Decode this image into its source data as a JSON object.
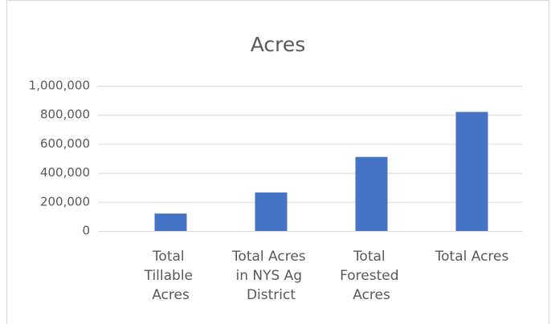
{
  "chart_data": {
    "type": "bar",
    "title": "Acres",
    "categories": [
      "Total Tillable Acres",
      "Total Acres in NYS Ag District",
      "Total Forested Acres",
      "Total Acres"
    ],
    "values": [
      120000,
      265000,
      510000,
      820000
    ],
    "color": "#4472c4",
    "ylim": [
      0,
      1000000
    ],
    "yticks": [
      0,
      {
        "value": 200000,
        "label": "200,000"
      },
      {
        "value": 400000,
        "label": "400,000"
      },
      {
        "value": 600000,
        "label": "600,000"
      },
      {
        "value": 800000,
        "label": "800,000"
      },
      {
        "value": 1000000,
        "label": "1,000,000"
      }
    ],
    "grid": true
  }
}
